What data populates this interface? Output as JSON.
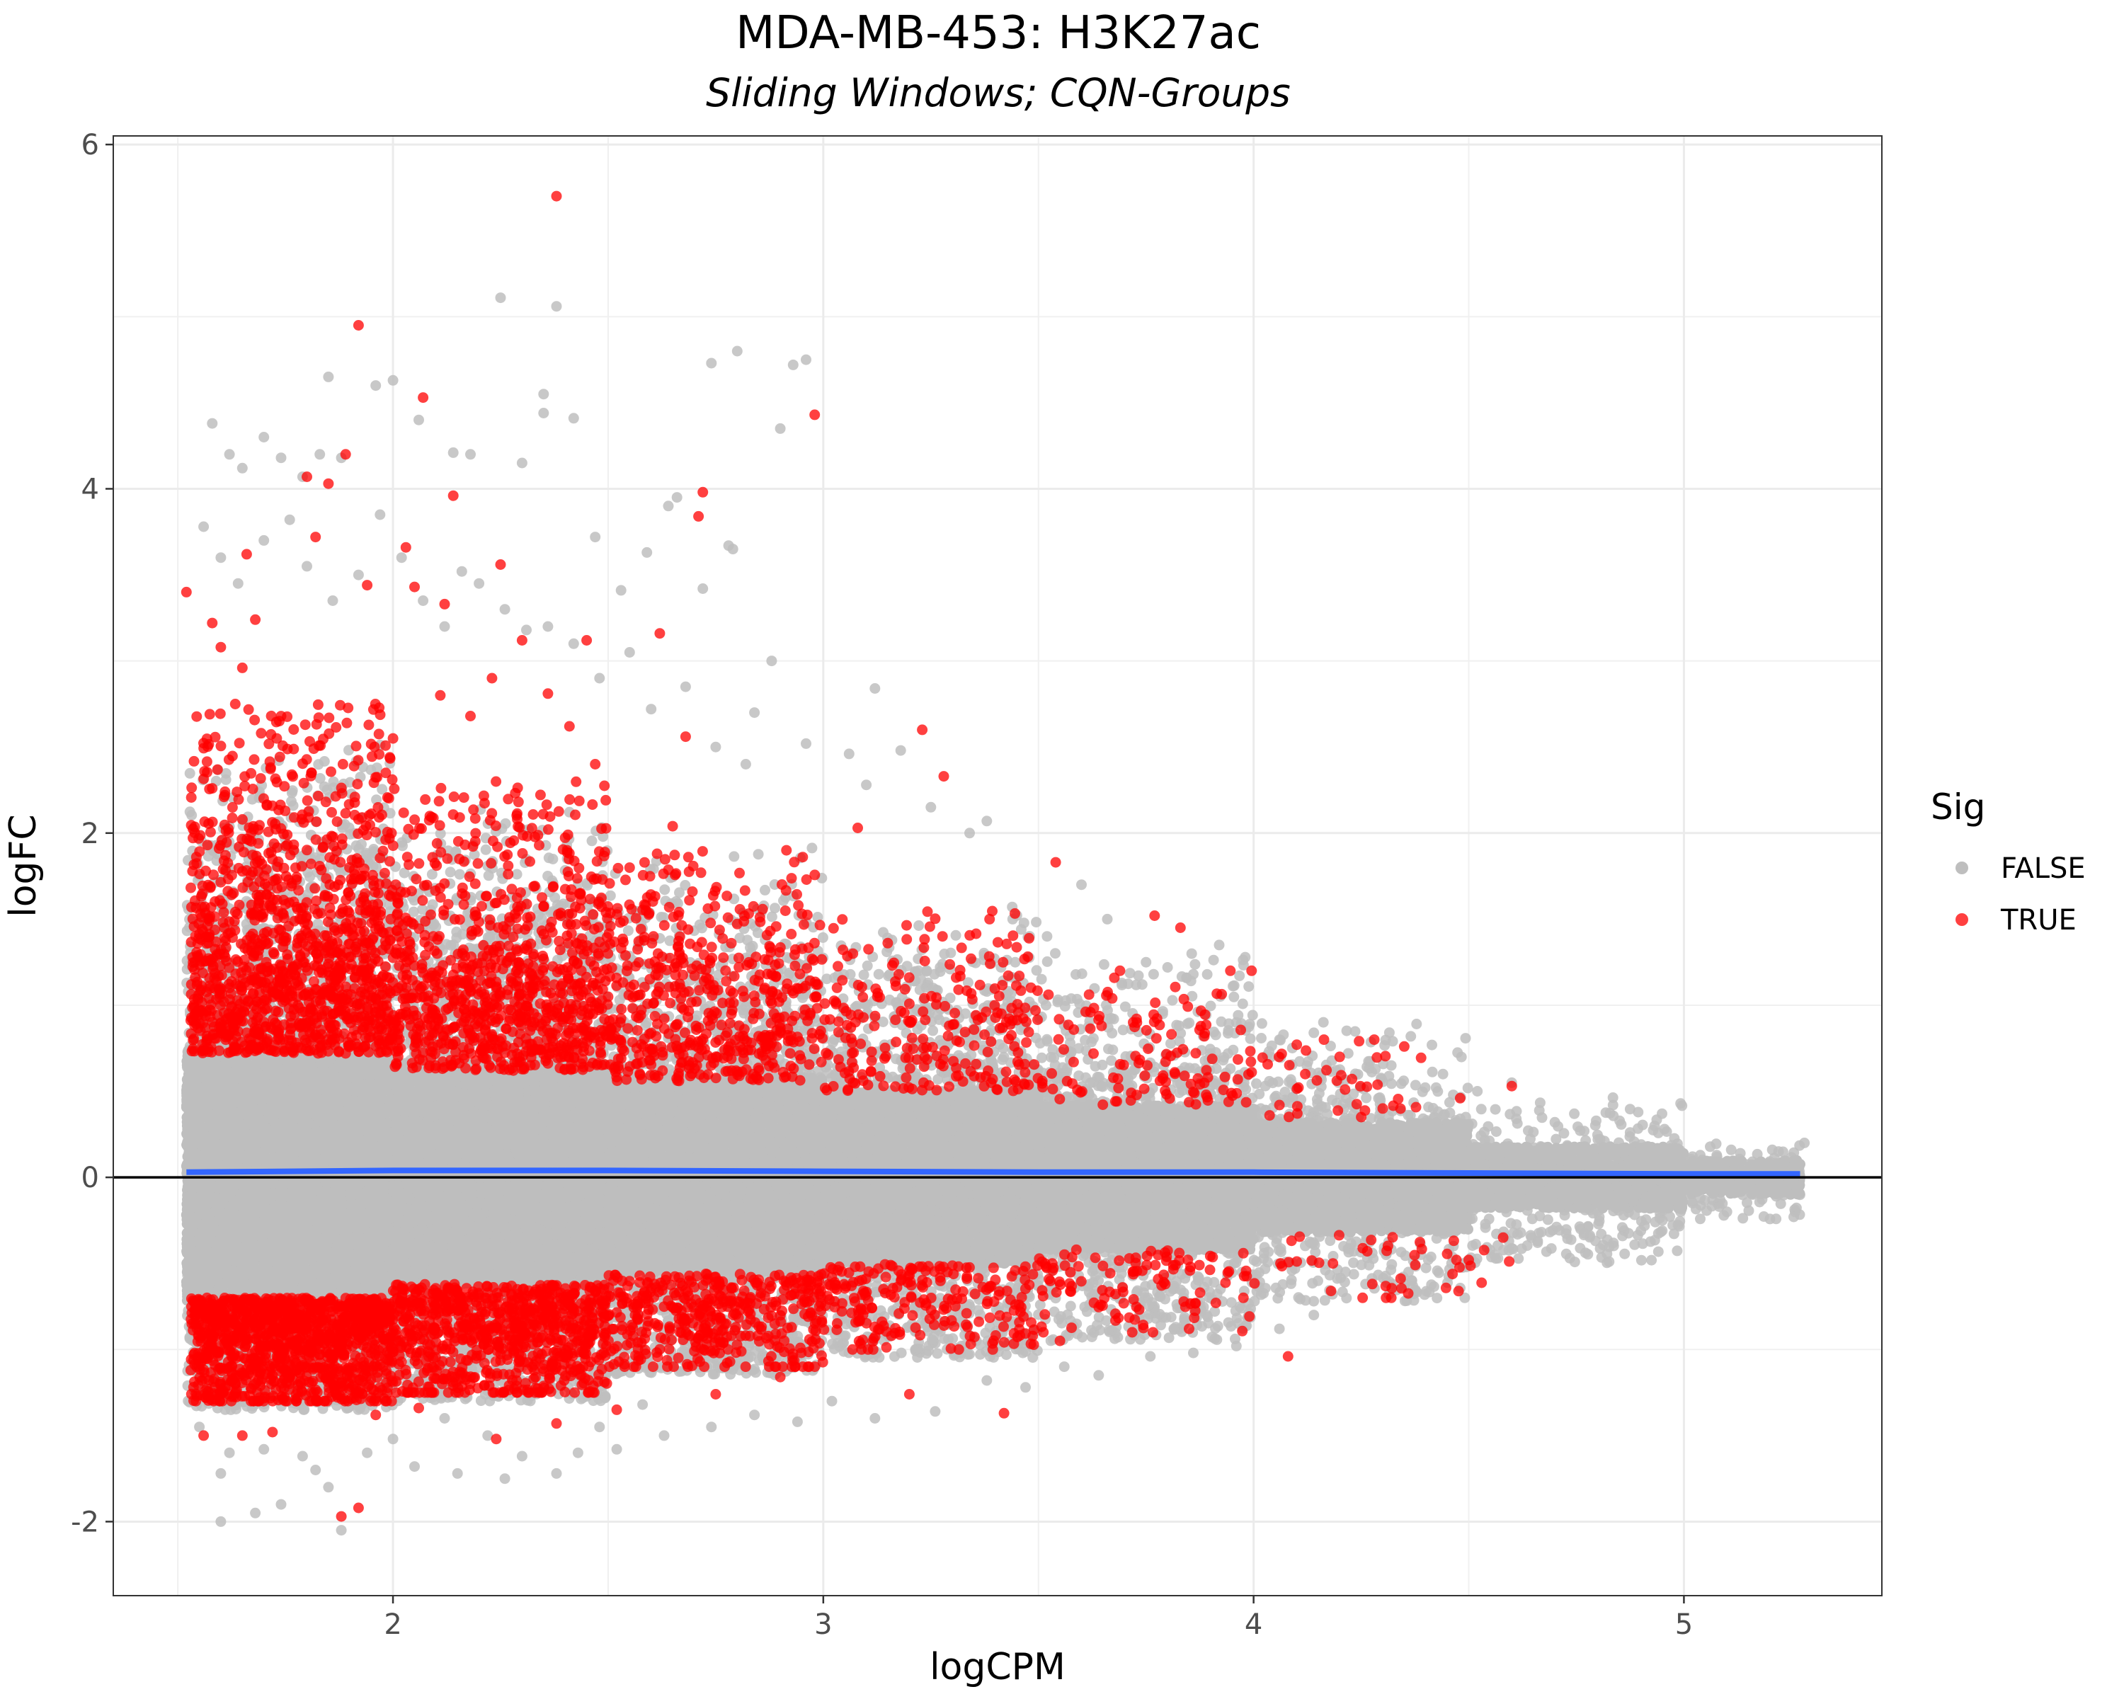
{
  "chart_data": {
    "type": "scatter",
    "title": "MDA-MB-453: H3K27ac",
    "subtitle": "Sliding Windows; CQN-Groups",
    "xlabel": "logCPM",
    "ylabel": "logFC",
    "xlim": [
      1.35,
      5.46
    ],
    "ylim": [
      -2.43,
      6.05
    ],
    "x_ticks": [
      2,
      3,
      4,
      5
    ],
    "y_ticks": [
      -2,
      0,
      2,
      4,
      6
    ],
    "x_tick_labels": [
      "2",
      "3",
      "4",
      "5"
    ],
    "y_tick_labels": [
      "-2",
      "0",
      "2",
      "4",
      "6"
    ],
    "grid": true,
    "reference_line": {
      "y": 0,
      "color": "#000000"
    },
    "trend_line": {
      "color": "#3366FF",
      "x": [
        1.52,
        2.0,
        2.5,
        3.0,
        3.5,
        4.0,
        4.5,
        5.0,
        5.27
      ],
      "y": [
        0.03,
        0.04,
        0.04,
        0.035,
        0.03,
        0.03,
        0.025,
        0.02,
        0.02
      ]
    },
    "legend": {
      "title": "Sig",
      "position": "right",
      "entries": [
        {
          "label": "FALSE",
          "color": "#BEBEBE"
        },
        {
          "label": "TRUE",
          "color": "#FF0000"
        }
      ]
    },
    "series": [
      {
        "name": "FALSE",
        "color": "#BEBEBE",
        "points": [
          [
            1.58,
            4.38
          ],
          [
            1.62,
            4.2
          ],
          [
            1.65,
            4.12
          ],
          [
            1.7,
            4.3
          ],
          [
            1.74,
            4.18
          ],
          [
            1.79,
            4.07
          ],
          [
            1.83,
            4.2
          ],
          [
            1.88,
            4.18
          ],
          [
            1.85,
            4.65
          ],
          [
            1.96,
            4.6
          ],
          [
            2.0,
            4.63
          ],
          [
            2.06,
            4.4
          ],
          [
            2.14,
            4.21
          ],
          [
            2.18,
            4.2
          ],
          [
            2.3,
            4.15
          ],
          [
            2.35,
            4.55
          ],
          [
            2.35,
            4.44
          ],
          [
            2.42,
            4.41
          ],
          [
            2.38,
            5.06
          ],
          [
            2.25,
            5.11
          ],
          [
            2.74,
            4.73
          ],
          [
            2.8,
            4.8
          ],
          [
            2.93,
            4.72
          ],
          [
            2.96,
            4.75
          ],
          [
            2.9,
            4.35
          ],
          [
            2.78,
            3.67
          ],
          [
            2.79,
            3.65
          ],
          [
            2.72,
            3.42
          ],
          [
            2.64,
            3.9
          ],
          [
            2.66,
            3.95
          ],
          [
            2.59,
            3.63
          ],
          [
            2.53,
            3.41
          ],
          [
            2.47,
            3.72
          ],
          [
            2.88,
            3.0
          ],
          [
            2.84,
            2.7
          ],
          [
            2.96,
            2.52
          ],
          [
            3.06,
            2.46
          ],
          [
            3.1,
            2.28
          ],
          [
            3.12,
            2.84
          ],
          [
            3.18,
            2.48
          ],
          [
            3.25,
            2.15
          ],
          [
            3.34,
            2.0
          ],
          [
            3.38,
            2.07
          ],
          [
            3.44,
            1.5
          ],
          [
            3.52,
            1.4
          ],
          [
            3.6,
            1.7
          ],
          [
            3.66,
            1.5
          ],
          [
            3.75,
            1.25
          ],
          [
            3.8,
            1.22
          ],
          [
            3.86,
            1.18
          ],
          [
            3.92,
            1.35
          ],
          [
            3.96,
            0.9
          ],
          [
            4.06,
            0.8
          ],
          [
            4.14,
            0.84
          ],
          [
            4.22,
            0.72
          ],
          [
            4.32,
            0.65
          ],
          [
            4.44,
            0.6
          ],
          [
            4.52,
            0.5
          ],
          [
            4.6,
            0.55
          ],
          [
            4.7,
            0.32
          ],
          [
            4.8,
            0.22
          ],
          [
            4.88,
            0.15
          ],
          [
            4.96,
            0.12
          ],
          [
            5.02,
            0.12
          ],
          [
            5.08,
            0.08
          ],
          [
            5.16,
            0.06
          ],
          [
            5.22,
            0.15
          ],
          [
            5.28,
            0.2
          ],
          [
            5.22,
            -0.08
          ],
          [
            5.16,
            -0.1
          ],
          [
            5.1,
            -0.2
          ],
          [
            5.02,
            -0.15
          ],
          [
            4.95,
            -0.25
          ],
          [
            4.86,
            -0.22
          ],
          [
            4.76,
            -0.3
          ],
          [
            4.66,
            -0.38
          ],
          [
            4.56,
            -0.45
          ],
          [
            4.46,
            -0.5
          ],
          [
            4.36,
            -0.55
          ],
          [
            4.26,
            -0.62
          ],
          [
            4.14,
            -0.8
          ],
          [
            4.06,
            -0.88
          ],
          [
            3.96,
            -0.98
          ],
          [
            3.86,
            -1.02
          ],
          [
            3.76,
            -1.04
          ],
          [
            3.64,
            -1.15
          ],
          [
            3.56,
            -1.1
          ],
          [
            3.47,
            -1.22
          ],
          [
            3.38,
            -1.18
          ],
          [
            3.26,
            -1.36
          ],
          [
            3.12,
            -1.4
          ],
          [
            3.02,
            -1.3
          ],
          [
            2.94,
            -1.42
          ],
          [
            2.84,
            -1.38
          ],
          [
            2.74,
            -1.45
          ],
          [
            2.63,
            -1.5
          ],
          [
            2.52,
            -1.58
          ],
          [
            2.43,
            -1.6
          ],
          [
            2.38,
            -1.72
          ],
          [
            2.3,
            -1.62
          ],
          [
            2.26,
            -1.75
          ],
          [
            2.15,
            -1.72
          ],
          [
            2.05,
            -1.68
          ],
          [
            2.0,
            -1.52
          ],
          [
            1.94,
            -1.6
          ],
          [
            1.88,
            -2.05
          ],
          [
            1.85,
            -1.8
          ],
          [
            1.79,
            -1.62
          ],
          [
            1.74,
            -1.9
          ],
          [
            1.68,
            -1.95
          ],
          [
            1.62,
            -1.6
          ],
          [
            1.6,
            -2.0
          ],
          [
            1.55,
            -1.45
          ],
          [
            1.6,
            -1.72
          ],
          [
            1.7,
            -1.58
          ],
          [
            1.82,
            -1.7
          ],
          [
            2.12,
            -1.4
          ],
          [
            2.22,
            -1.5
          ],
          [
            2.48,
            -1.45
          ],
          [
            2.58,
            -1.32
          ],
          [
            1.56,
            3.78
          ],
          [
            1.6,
            3.6
          ],
          [
            1.64,
            3.45
          ],
          [
            1.7,
            3.7
          ],
          [
            1.76,
            3.82
          ],
          [
            1.8,
            3.55
          ],
          [
            1.86,
            3.35
          ],
          [
            1.92,
            3.5
          ],
          [
            1.97,
            3.85
          ],
          [
            2.02,
            3.6
          ],
          [
            2.07,
            3.35
          ],
          [
            2.12,
            3.2
          ],
          [
            2.16,
            3.52
          ],
          [
            2.2,
            3.45
          ],
          [
            2.26,
            3.3
          ],
          [
            2.31,
            3.18
          ],
          [
            2.36,
            3.2
          ],
          [
            2.42,
            3.1
          ],
          [
            2.48,
            2.9
          ],
          [
            2.55,
            3.05
          ],
          [
            2.6,
            2.72
          ],
          [
            2.68,
            2.85
          ],
          [
            2.75,
            2.5
          ],
          [
            2.82,
            2.4
          ]
        ],
        "core_bands": [
          {
            "x0": 1.52,
            "x1": 2.0,
            "y_low": -0.72,
            "y_high": 0.75,
            "count": 14000
          },
          {
            "x0": 2.0,
            "x1": 2.5,
            "y_low": -0.62,
            "y_high": 0.66,
            "count": 11000
          },
          {
            "x0": 2.5,
            "x1": 3.0,
            "y_low": -0.55,
            "y_high": 0.58,
            "count": 8500
          },
          {
            "x0": 3.0,
            "x1": 3.5,
            "y_low": -0.5,
            "y_high": 0.5,
            "count": 6000
          },
          {
            "x0": 3.5,
            "x1": 4.0,
            "y_low": -0.42,
            "y_high": 0.42,
            "count": 4000
          },
          {
            "x0": 4.0,
            "x1": 4.5,
            "y_low": -0.32,
            "y_high": 0.32,
            "count": 2500
          },
          {
            "x0": 4.5,
            "x1": 5.0,
            "y_low": -0.18,
            "y_high": 0.18,
            "count": 1400
          },
          {
            "x0": 5.0,
            "x1": 5.27,
            "y_low": -0.1,
            "y_high": 0.1,
            "count": 400
          }
        ],
        "halo_bands": [
          {
            "x0": 1.52,
            "x1": 2.0,
            "y_low": -1.35,
            "y_high": 2.6,
            "count": 2600
          },
          {
            "x0": 2.0,
            "x1": 2.5,
            "y_low": -1.3,
            "y_high": 2.2,
            "count": 2200
          },
          {
            "x0": 2.5,
            "x1": 3.0,
            "y_low": -1.15,
            "y_high": 1.95,
            "count": 1700
          },
          {
            "x0": 3.0,
            "x1": 3.5,
            "y_low": -1.05,
            "y_high": 1.65,
            "count": 1300
          },
          {
            "x0": 3.5,
            "x1": 4.0,
            "y_low": -0.95,
            "y_high": 1.35,
            "count": 950
          },
          {
            "x0": 4.0,
            "x1": 4.5,
            "y_low": -0.72,
            "y_high": 0.95,
            "count": 600
          },
          {
            "x0": 4.5,
            "x1": 5.0,
            "y_low": -0.5,
            "y_high": 0.5,
            "count": 300
          },
          {
            "x0": 5.0,
            "x1": 5.27,
            "y_low": -0.25,
            "y_high": 0.22,
            "count": 90
          }
        ]
      },
      {
        "name": "TRUE",
        "color": "#FF0000",
        "points": [
          [
            2.38,
            5.7
          ],
          [
            1.92,
            4.95
          ],
          [
            2.07,
            4.53
          ],
          [
            2.98,
            4.43
          ],
          [
            1.89,
            4.2
          ],
          [
            1.85,
            4.03
          ],
          [
            2.72,
            3.98
          ],
          [
            2.14,
            3.96
          ],
          [
            2.71,
            3.84
          ],
          [
            1.66,
            3.62
          ],
          [
            2.03,
            3.66
          ],
          [
            1.82,
            3.72
          ],
          [
            1.8,
            4.07
          ],
          [
            1.52,
            3.4
          ],
          [
            1.58,
            3.22
          ],
          [
            2.25,
            3.56
          ],
          [
            1.94,
            3.44
          ],
          [
            2.05,
            3.43
          ],
          [
            2.12,
            3.33
          ],
          [
            2.45,
            3.12
          ],
          [
            2.3,
            3.12
          ],
          [
            2.62,
            3.16
          ],
          [
            1.68,
            3.24
          ],
          [
            1.6,
            3.08
          ],
          [
            1.65,
            2.96
          ],
          [
            2.23,
            2.9
          ],
          [
            2.11,
            2.8
          ],
          [
            2.36,
            2.81
          ],
          [
            2.41,
            2.62
          ],
          [
            2.68,
            2.56
          ],
          [
            3.23,
            2.6
          ],
          [
            3.28,
            2.33
          ],
          [
            2.18,
            2.68
          ],
          [
            2.0,
            2.55
          ],
          [
            2.47,
            2.4
          ],
          [
            3.08,
            2.03
          ],
          [
            2.65,
            2.04
          ],
          [
            3.54,
            1.83
          ],
          [
            3.77,
            1.52
          ],
          [
            3.83,
            1.45
          ],
          [
            4.35,
            0.76
          ],
          [
            4.2,
            0.7
          ],
          [
            4.6,
            0.53
          ],
          [
            4.48,
            0.46
          ],
          [
            4.06,
            0.42
          ],
          [
            4.3,
            0.4
          ],
          [
            4.12,
            0.6
          ],
          [
            4.25,
            0.35
          ],
          [
            3.42,
            -1.37
          ],
          [
            3.55,
            -0.95
          ],
          [
            3.85,
            -0.88
          ],
          [
            4.08,
            -1.04
          ],
          [
            4.32,
            -0.7
          ],
          [
            4.18,
            -0.66
          ],
          [
            4.5,
            -0.48
          ],
          [
            4.58,
            -0.35
          ],
          [
            1.88,
            -1.97
          ],
          [
            1.92,
            -1.92
          ],
          [
            1.56,
            -1.5
          ],
          [
            1.65,
            -1.5
          ],
          [
            1.72,
            -1.48
          ],
          [
            2.24,
            -1.52
          ],
          [
            2.38,
            -1.43
          ],
          [
            2.52,
            -1.35
          ],
          [
            2.75,
            -1.26
          ],
          [
            2.9,
            -1.16
          ],
          [
            3.2,
            -1.26
          ],
          [
            1.53,
            -1.12
          ],
          [
            1.6,
            -1.25
          ],
          [
            1.75,
            -1.3
          ],
          [
            1.96,
            -1.38
          ],
          [
            2.06,
            -1.34
          ]
        ],
        "upper_bands": [
          {
            "x0": 1.53,
            "x1": 2.0,
            "y_low": 0.72,
            "y_high": 2.75,
            "y_peak": 1.05,
            "count": 1250
          },
          {
            "x0": 2.0,
            "x1": 2.5,
            "y_low": 0.62,
            "y_high": 2.3,
            "y_peak": 0.9,
            "count": 900
          },
          {
            "x0": 2.5,
            "x1": 3.0,
            "y_low": 0.56,
            "y_high": 1.9,
            "y_peak": 0.8,
            "count": 520
          },
          {
            "x0": 3.0,
            "x1": 3.5,
            "y_low": 0.5,
            "y_high": 1.55,
            "y_peak": 0.7,
            "count": 240
          },
          {
            "x0": 3.5,
            "x1": 4.0,
            "y_low": 0.42,
            "y_high": 1.2,
            "y_peak": 0.58,
            "count": 120
          },
          {
            "x0": 4.0,
            "x1": 4.4,
            "y_low": 0.35,
            "y_high": 0.8,
            "y_peak": 0.45,
            "count": 35
          }
        ],
        "lower_bands": [
          {
            "x0": 1.53,
            "x1": 2.0,
            "y_low": -1.3,
            "y_high": -0.7,
            "y_peak": -0.85,
            "count": 1150
          },
          {
            "x0": 2.0,
            "x1": 2.5,
            "y_low": -1.25,
            "y_high": -0.62,
            "y_peak": -0.78,
            "count": 800
          },
          {
            "x0": 2.5,
            "x1": 3.0,
            "y_low": -1.1,
            "y_high": -0.56,
            "y_peak": -0.7,
            "count": 430
          },
          {
            "x0": 3.0,
            "x1": 3.5,
            "y_low": -1.0,
            "y_high": -0.5,
            "y_peak": -0.6,
            "count": 220
          },
          {
            "x0": 3.5,
            "x1": 4.0,
            "y_low": -0.9,
            "y_high": -0.42,
            "y_peak": -0.5,
            "count": 110
          },
          {
            "x0": 4.0,
            "x1": 4.6,
            "y_low": -0.7,
            "y_high": -0.33,
            "y_peak": -0.4,
            "count": 40
          }
        ]
      }
    ]
  }
}
